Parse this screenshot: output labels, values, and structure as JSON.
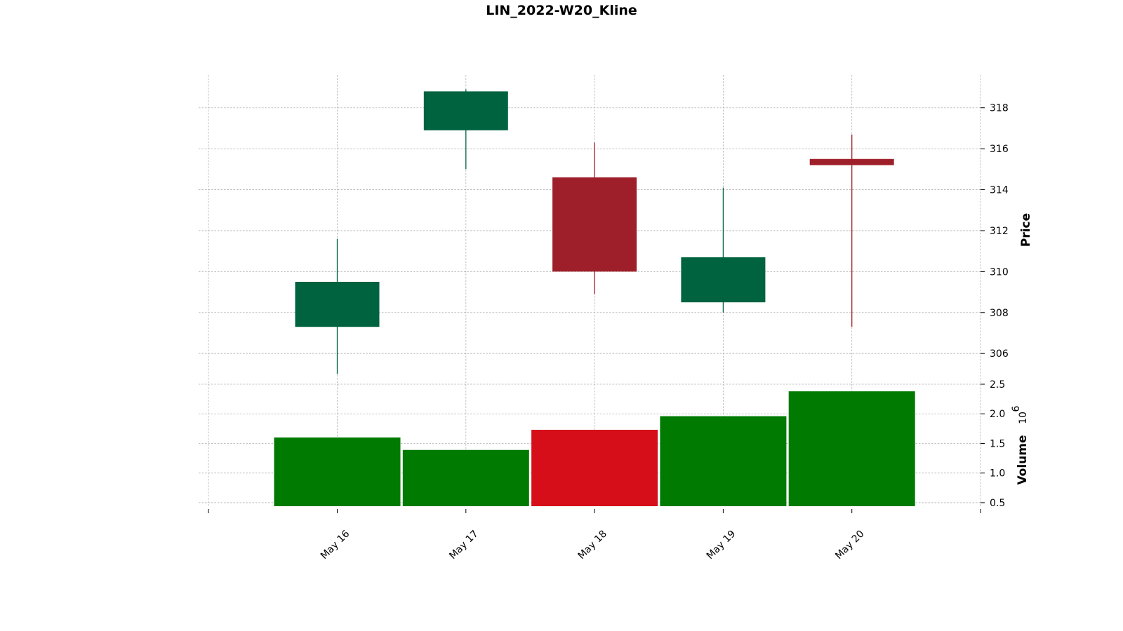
{
  "chart_data": {
    "type": "candlestick",
    "title": "LIN_2022-W20_Kline",
    "categories": [
      "May 16",
      "May 17",
      "May 18",
      "May 19",
      "May 20"
    ],
    "ohlc": [
      {
        "date": "May 16",
        "open": 307.3,
        "high": 311.6,
        "low": 305.0,
        "close": 309.5
      },
      {
        "date": "May 17",
        "open": 316.9,
        "high": 318.9,
        "low": 315.0,
        "close": 318.8
      },
      {
        "date": "May 18",
        "open": 314.6,
        "high": 316.3,
        "low": 308.9,
        "close": 310.0
      },
      {
        "date": "May 19",
        "open": 308.5,
        "high": 314.1,
        "low": 308.0,
        "close": 310.7
      },
      {
        "date": "May 20",
        "open": 315.5,
        "high": 316.7,
        "low": 307.3,
        "close": 315.2
      }
    ],
    "volume": {
      "values": [
        1.6,
        1.39,
        1.73,
        1.96,
        2.38
      ],
      "colors": [
        "#007a00",
        "#007a00",
        "#d50e1a",
        "#007a00",
        "#007a00"
      ]
    },
    "price_axis": {
      "label": "Price",
      "ylim": [
        304.5,
        319.6
      ],
      "ticks": [
        306,
        308,
        310,
        312,
        314,
        316,
        318
      ]
    },
    "volume_axis": {
      "label": "Volume",
      "exponent": "10",
      "exponent_power": "6",
      "ylim": [
        0.44,
        2.5
      ],
      "ticks": [
        0.5,
        1.0,
        1.5,
        2.0,
        2.5
      ],
      "tick_labels": [
        "0.5",
        "1.0",
        "1.5",
        "2.0",
        "2.5"
      ]
    },
    "colors": {
      "up": "#006340",
      "down": "#9e1f29",
      "grid": "#b0b0b0"
    },
    "grid": true
  }
}
